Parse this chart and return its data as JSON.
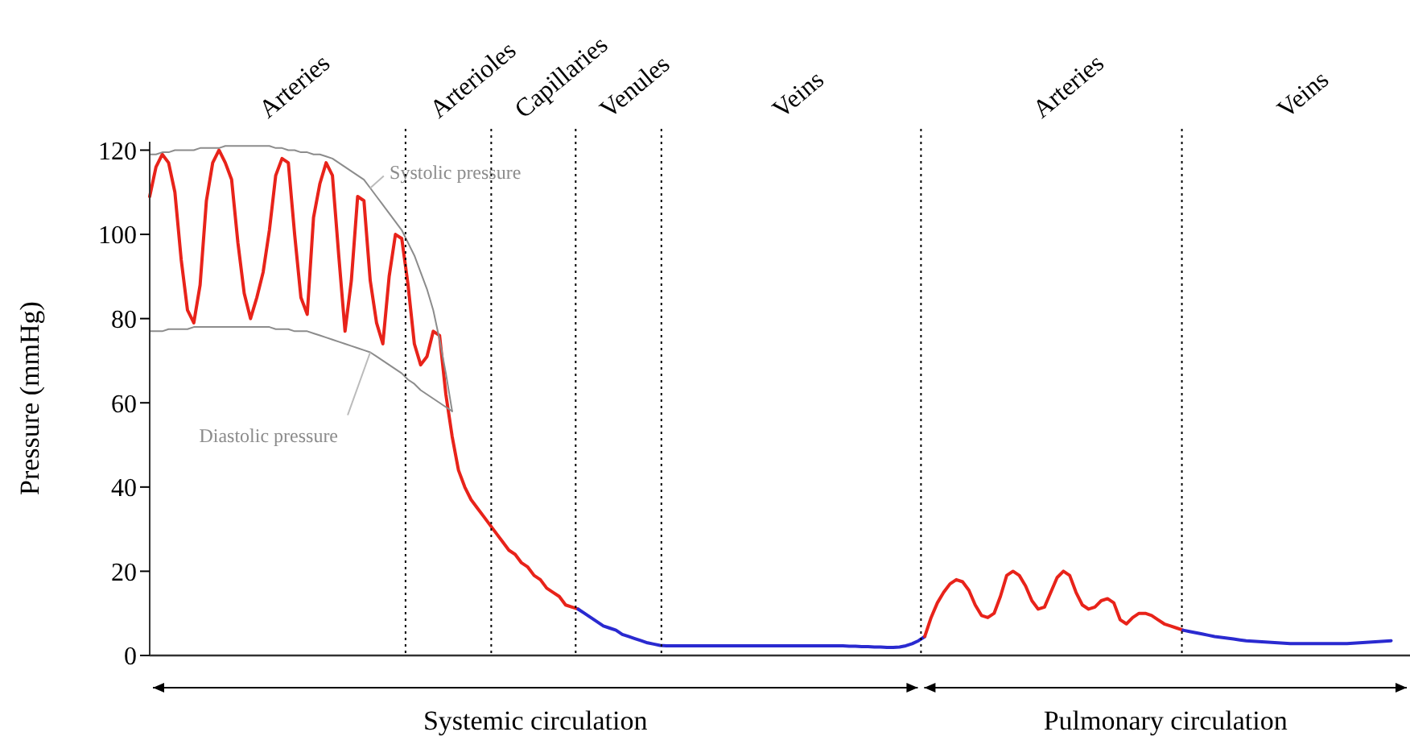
{
  "chart_data": {
    "type": "line",
    "ylabel": "Pressure (mmHg)",
    "ylim": [
      0,
      122
    ],
    "yticks": [
      0,
      20,
      40,
      60,
      80,
      100,
      120
    ],
    "grid": false,
    "legend": false,
    "marker": "none",
    "line_style": "solid",
    "categories": [
      null,
      null,
      null,
      null,
      null,
      null,
      null,
      null,
      null,
      null,
      null,
      null,
      null,
      null,
      null,
      null,
      null,
      null,
      null,
      null,
      null,
      null,
      null,
      null,
      null,
      null,
      null,
      null,
      null,
      null,
      null,
      null,
      null,
      null,
      null,
      null,
      null,
      null,
      null,
      null,
      null,
      null,
      null,
      null,
      null,
      null,
      null,
      null,
      null,
      null,
      null,
      null,
      null,
      null,
      null,
      null,
      null,
      null,
      null,
      null,
      null,
      null,
      null,
      null,
      null,
      null,
      null,
      null,
      null,
      null,
      null,
      null,
      null,
      null,
      null,
      null,
      null,
      null,
      null,
      null,
      null,
      null,
      null,
      null,
      null,
      null,
      null,
      null,
      null,
      null,
      null,
      null,
      null,
      null,
      null,
      null,
      null,
      null,
      null,
      null,
      null,
      null,
      null,
      null,
      null,
      null,
      null,
      null,
      null,
      null,
      null,
      null,
      null,
      null,
      null,
      null,
      null,
      null,
      null,
      null,
      null,
      null,
      null,
      null,
      null,
      null,
      null,
      null,
      null,
      null,
      null,
      null,
      null,
      null,
      null,
      null,
      null,
      null,
      null,
      null,
      null,
      null,
      null,
      null,
      null,
      null,
      null,
      null,
      null,
      null,
      null,
      null,
      null,
      null,
      null,
      null,
      null,
      null,
      null,
      null,
      null,
      null,
      null,
      null,
      null,
      null,
      null,
      null,
      null,
      null,
      null,
      null,
      null,
      null,
      null,
      null,
      null,
      null,
      null,
      null,
      null,
      null,
      null,
      null,
      null,
      null,
      null,
      null,
      null,
      null,
      null,
      null,
      null,
      null,
      null,
      null,
      null,
      null,
      null,
      null,
      null
    ],
    "series": [
      {
        "color": "#e8231a",
        "values": [
          109,
          116,
          119,
          117,
          110,
          94,
          82,
          79,
          88,
          108,
          117,
          120,
          117,
          113,
          98,
          86,
          80,
          85,
          91,
          101,
          114,
          118,
          117,
          100,
          85,
          81,
          104,
          112,
          117,
          114,
          95,
          77,
          89,
          109,
          108,
          89,
          79,
          74,
          90,
          100,
          99,
          88,
          74,
          69,
          71,
          77,
          76,
          62,
          52,
          44,
          40,
          37,
          35,
          33,
          31,
          29,
          27,
          25,
          24,
          22,
          21,
          19,
          18,
          16,
          15,
          14,
          12,
          11.5,
          11,
          null,
          null,
          null,
          null,
          null,
          null,
          null,
          null,
          null,
          null,
          null,
          null,
          null,
          null,
          null,
          null,
          null,
          null,
          null,
          null,
          null,
          null,
          null,
          null,
          null,
          null,
          null,
          null,
          null,
          null,
          null,
          null,
          null,
          null,
          null,
          null,
          null,
          null,
          null,
          null,
          null,
          null,
          null,
          null,
          null,
          null,
          null,
          null,
          null,
          null,
          null,
          null,
          null,
          null,
          null,
          null,
          null,
          null,
          null,
          null,
          null,
          null,
          null,
          null,
          null,
          null,
          null,
          null,
          null,
          null,
          null,
          null,
          null,
          null,
          null,
          null,
          null,
          null,
          null,
          null,
          null,
          null,
          null,
          null,
          null,
          null,
          null,
          null,
          null,
          null,
          null,
          null,
          null,
          null,
          null,
          null,
          null,
          null,
          null,
          null,
          null,
          null,
          null,
          null,
          null,
          null,
          null,
          null,
          null,
          null,
          null,
          null,
          null,
          null,
          null,
          null,
          null,
          null,
          null,
          null,
          null,
          null,
          null,
          null,
          null,
          null,
          null,
          null,
          null,
          null,
          null,
          null
        ]
      },
      {
        "color": "#2a2ad0",
        "values": [
          null,
          null,
          null,
          null,
          null,
          null,
          null,
          null,
          null,
          null,
          null,
          null,
          null,
          null,
          null,
          null,
          null,
          null,
          null,
          null,
          null,
          null,
          null,
          null,
          null,
          null,
          null,
          null,
          null,
          null,
          null,
          null,
          null,
          null,
          null,
          null,
          null,
          null,
          null,
          null,
          null,
          null,
          null,
          null,
          null,
          null,
          null,
          null,
          null,
          null,
          null,
          null,
          null,
          null,
          null,
          null,
          null,
          null,
          null,
          null,
          null,
          null,
          null,
          null,
          null,
          null,
          null,
          null,
          11,
          10,
          9,
          8,
          7,
          6.5,
          6,
          5,
          4.5,
          4,
          3.5,
          3,
          2.7,
          2.4,
          2.3,
          2.3,
          2.3,
          2.3,
          2.3,
          2.3,
          2.3,
          2.3,
          2.3,
          2.3,
          2.3,
          2.3,
          2.3,
          2.3,
          2.3,
          2.3,
          2.3,
          2.3,
          2.3,
          2.3,
          2.3,
          2.3,
          2.3,
          2.3,
          2.3,
          2.3,
          2.3,
          2.3,
          2.3,
          2.2,
          2.2,
          2.1,
          2.1,
          2,
          2,
          1.9,
          1.9,
          2,
          2.3,
          2.8,
          3.5,
          4.5,
          null,
          null,
          null,
          null,
          null,
          null,
          null,
          null,
          null,
          null,
          null,
          null,
          null,
          null,
          null,
          null,
          null,
          null,
          null,
          null,
          null,
          null,
          null,
          null,
          null,
          null,
          null,
          null,
          null,
          null,
          null,
          null,
          null,
          null,
          null,
          null,
          null,
          null,
          null,
          null,
          null,
          null,
          null,
          null,
          null,
          null,
          null,
          null,
          null,
          null,
          null,
          null,
          null,
          null,
          null,
          null,
          null,
          null,
          null,
          null,
          null,
          null,
          null,
          null,
          null,
          null,
          null,
          null,
          null,
          null,
          null,
          null,
          null,
          null,
          null,
          null,
          null
        ]
      },
      {
        "color": "#e8231a",
        "values": [
          null,
          null,
          null,
          null,
          null,
          null,
          null,
          null,
          null,
          null,
          null,
          null,
          null,
          null,
          null,
          null,
          null,
          null,
          null,
          null,
          null,
          null,
          null,
          null,
          null,
          null,
          null,
          null,
          null,
          null,
          null,
          null,
          null,
          null,
          null,
          null,
          null,
          null,
          null,
          null,
          null,
          null,
          null,
          null,
          null,
          null,
          null,
          null,
          null,
          null,
          null,
          null,
          null,
          null,
          null,
          null,
          null,
          null,
          null,
          null,
          null,
          null,
          null,
          null,
          null,
          null,
          null,
          null,
          null,
          null,
          null,
          null,
          null,
          null,
          null,
          null,
          null,
          null,
          null,
          null,
          null,
          null,
          null,
          null,
          null,
          null,
          null,
          null,
          null,
          null,
          null,
          null,
          null,
          null,
          null,
          null,
          null,
          null,
          null,
          null,
          null,
          null,
          null,
          null,
          null,
          null,
          null,
          null,
          null,
          null,
          null,
          null,
          null,
          null,
          null,
          null,
          null,
          null,
          null,
          null,
          null,
          null,
          null,
          4.5,
          9,
          12.5,
          15,
          17,
          18,
          17.5,
          15.5,
          12,
          9.5,
          9,
          10,
          14,
          19,
          20,
          19,
          16.5,
          13,
          11,
          11.5,
          15,
          18.5,
          20,
          19,
          15,
          12,
          11,
          11.5,
          13,
          13.5,
          12.5,
          8.5,
          7.5,
          9,
          10,
          10,
          9.5,
          8.5,
          7.5,
          7,
          6.5,
          6,
          null,
          null,
          null,
          null,
          null,
          null,
          null,
          null,
          null,
          null,
          null,
          null,
          null,
          null,
          null,
          null,
          null,
          null,
          null,
          null,
          null,
          null,
          null,
          null,
          null,
          null,
          null,
          null,
          null,
          null,
          null,
          null,
          null,
          null,
          null,
          null
        ]
      },
      {
        "color": "#2a2ad0",
        "values": [
          null,
          null,
          null,
          null,
          null,
          null,
          null,
          null,
          null,
          null,
          null,
          null,
          null,
          null,
          null,
          null,
          null,
          null,
          null,
          null,
          null,
          null,
          null,
          null,
          null,
          null,
          null,
          null,
          null,
          null,
          null,
          null,
          null,
          null,
          null,
          null,
          null,
          null,
          null,
          null,
          null,
          null,
          null,
          null,
          null,
          null,
          null,
          null,
          null,
          null,
          null,
          null,
          null,
          null,
          null,
          null,
          null,
          null,
          null,
          null,
          null,
          null,
          null,
          null,
          null,
          null,
          null,
          null,
          null,
          null,
          null,
          null,
          null,
          null,
          null,
          null,
          null,
          null,
          null,
          null,
          null,
          null,
          null,
          null,
          null,
          null,
          null,
          null,
          null,
          null,
          null,
          null,
          null,
          null,
          null,
          null,
          null,
          null,
          null,
          null,
          null,
          null,
          null,
          null,
          null,
          null,
          null,
          null,
          null,
          null,
          null,
          null,
          null,
          null,
          null,
          null,
          null,
          null,
          null,
          null,
          null,
          null,
          null,
          null,
          null,
          null,
          null,
          null,
          null,
          null,
          null,
          null,
          null,
          null,
          null,
          null,
          null,
          null,
          null,
          null,
          null,
          null,
          null,
          null,
          null,
          null,
          null,
          null,
          null,
          null,
          null,
          null,
          null,
          null,
          null,
          null,
          null,
          null,
          null,
          null,
          null,
          null,
          null,
          null,
          6,
          5.7,
          5.4,
          5.1,
          4.8,
          4.5,
          4.3,
          4.1,
          3.9,
          3.7,
          3.5,
          3.4,
          3.3,
          3.2,
          3.1,
          3,
          2.9,
          2.8,
          2.8,
          2.8,
          2.8,
          2.8,
          2.8,
          2.8,
          2.8,
          2.8,
          2.8,
          2.9,
          3,
          3.1,
          3.2,
          3.3,
          3.4,
          3.5,
          null,
          null,
          null
        ]
      },
      {
        "name": "Systolic pressure",
        "color": "#8c8c8c",
        "values": [
          119,
          119,
          119.5,
          119.5,
          120,
          120,
          120,
          120,
          120.5,
          120.5,
          120.5,
          120.5,
          121,
          121,
          121,
          121,
          121,
          121,
          121,
          121,
          120.5,
          120.5,
          120,
          120,
          119.5,
          119.5,
          119,
          119,
          118.5,
          118,
          117,
          116,
          115,
          114,
          113,
          111,
          109,
          107,
          105,
          103,
          101,
          98,
          95,
          91,
          87,
          82,
          75,
          67,
          58,
          null,
          null,
          null,
          null,
          null,
          null,
          null,
          null,
          null,
          null,
          null,
          null,
          null,
          null,
          null,
          null,
          null,
          null,
          null,
          null,
          null,
          null,
          null,
          null,
          null,
          null,
          null,
          null,
          null,
          null,
          null,
          null,
          null,
          null,
          null,
          null,
          null,
          null,
          null,
          null,
          null,
          null,
          null,
          null,
          null,
          null,
          null,
          null,
          null,
          null,
          null,
          null,
          null,
          null,
          null,
          null,
          null,
          null,
          null,
          null,
          null,
          null,
          null,
          null,
          null,
          null,
          null,
          null,
          null,
          null,
          null,
          null,
          null,
          null,
          null,
          null,
          null,
          null,
          null,
          null,
          null,
          null,
          null,
          null,
          null,
          null,
          null,
          null,
          null,
          null,
          null,
          null,
          null,
          null,
          null,
          null,
          null,
          null,
          null,
          null,
          null,
          null,
          null,
          null,
          null,
          null,
          null,
          null,
          null,
          null,
          null,
          null,
          null,
          null,
          null,
          null,
          null,
          null,
          null,
          null,
          null,
          null,
          null,
          null,
          null,
          null,
          null,
          null,
          null,
          null,
          null,
          null,
          null,
          null,
          null,
          null,
          null,
          null,
          null,
          null,
          null,
          null,
          null,
          null,
          null,
          null,
          null,
          null,
          null,
          null,
          null,
          null
        ]
      },
      {
        "name": "Diastolic pressure",
        "color": "#8c8c8c",
        "values": [
          77,
          77,
          77,
          77.5,
          77.5,
          77.5,
          77.5,
          78,
          78,
          78,
          78,
          78,
          78,
          78,
          78,
          78,
          78,
          78,
          78,
          78,
          77.5,
          77.5,
          77.5,
          77,
          77,
          77,
          76.5,
          76,
          75.5,
          75,
          74.5,
          74,
          73.5,
          73,
          72.5,
          72,
          71,
          70,
          69,
          68,
          67,
          65.5,
          64.5,
          63,
          62,
          61,
          60,
          59,
          58,
          null,
          null,
          null,
          null,
          null,
          null,
          null,
          null,
          null,
          null,
          null,
          null,
          null,
          null,
          null,
          null,
          null,
          null,
          null,
          null,
          null,
          null,
          null,
          null,
          null,
          null,
          null,
          null,
          null,
          null,
          null,
          null,
          null,
          null,
          null,
          null,
          null,
          null,
          null,
          null,
          null,
          null,
          null,
          null,
          null,
          null,
          null,
          null,
          null,
          null,
          null,
          null,
          null,
          null,
          null,
          null,
          null,
          null,
          null,
          null,
          null,
          null,
          null,
          null,
          null,
          null,
          null,
          null,
          null,
          null,
          null,
          null,
          null,
          null,
          null,
          null,
          null,
          null,
          null,
          null,
          null,
          null,
          null,
          null,
          null,
          null,
          null,
          null,
          null,
          null,
          null,
          null,
          null,
          null,
          null,
          null,
          null,
          null,
          null,
          null,
          null,
          null,
          null,
          null,
          null,
          null,
          null,
          null,
          null,
          null,
          null,
          null,
          null,
          null,
          null,
          null,
          null,
          null,
          null,
          null,
          null,
          null,
          null,
          null,
          null,
          null,
          null,
          null,
          null,
          null,
          null,
          null,
          null,
          null,
          null,
          null,
          null,
          null,
          null,
          null,
          null,
          null,
          null,
          null,
          null,
          null,
          null,
          null,
          null,
          null,
          null,
          null
        ]
      }
    ],
    "annotations": [
      "Arteries",
      "Arterioles",
      "Capillaries",
      "Venules",
      "Veins",
      "Arteries",
      "Veins",
      "Systemic circulation",
      "Pulmonary circulation"
    ]
  }
}
